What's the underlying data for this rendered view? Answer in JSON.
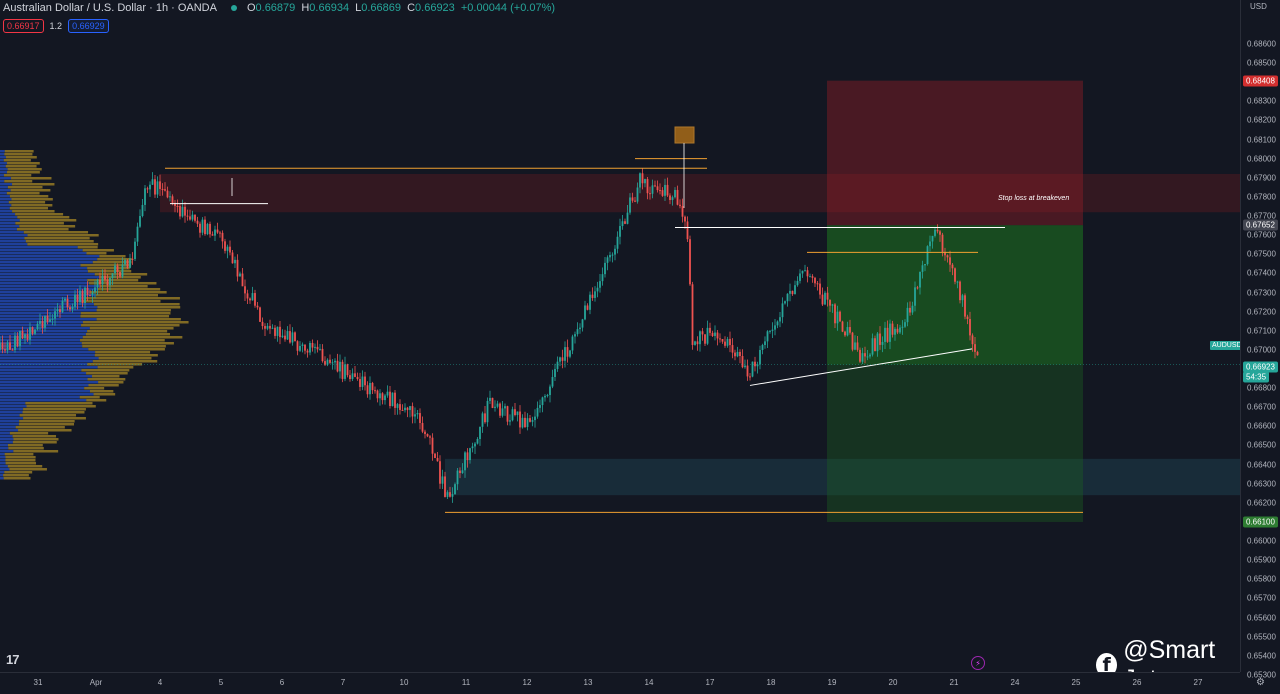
{
  "header": {
    "title": "Australian Dollar / U.S. Dollar · 1h · OANDA",
    "ohlc": {
      "o_label": "O",
      "o": "0.66879",
      "h_label": "H",
      "h": "0.66934",
      "l_label": "L",
      "l": "0.66869",
      "c_label": "C",
      "c": "0.66923",
      "change": "+0.00044 (+0.07%)"
    },
    "sell_price": "0.66917",
    "spread": "1.2",
    "buy_price": "0.66929"
  },
  "price_scale": {
    "currency": "USD",
    "ticks": [
      "0.68600",
      "0.68500",
      "0.68400",
      "0.68300",
      "0.68200",
      "0.68100",
      "0.68000",
      "0.67900",
      "0.67800",
      "0.67700",
      "0.67600",
      "0.67500",
      "0.67400",
      "0.67300",
      "0.67200",
      "0.67100",
      "0.67000",
      "0.66900",
      "0.66800",
      "0.66700",
      "0.66600",
      "0.66500",
      "0.66400",
      "0.66300",
      "0.66200",
      "0.66100",
      "0.66000",
      "0.65900",
      "0.65800",
      "0.65700",
      "0.65600",
      "0.65500",
      "0.65400",
      "0.65300"
    ],
    "stop_tag": "0.68408",
    "entry_tag": "0.67652",
    "target_tag": "0.66100",
    "last_price": "0.66923",
    "countdown": "54:35",
    "symbol": "AUDUSD"
  },
  "time_axis": {
    "labels": [
      "31",
      "Apr",
      "4",
      "5",
      "6",
      "7",
      "10",
      "11",
      "12",
      "13",
      "14",
      "17",
      "18",
      "19",
      "20",
      "21",
      "24",
      "25",
      "26",
      "27"
    ]
  },
  "annotations": {
    "stop_note": "Stop loss at breakeven"
  },
  "watermark": {
    "handle": "@Smart Jet"
  },
  "colors": {
    "up": "#26a69a",
    "down": "#ef5350",
    "background": "#131722",
    "stop_zone": "#8b1d26",
    "profit_zone": "#1b5e20",
    "orange_line": "#f0a030",
    "volume_blue": "#2962ff",
    "volume_gold": "#c9a227"
  },
  "chart_data": {
    "type": "candlestick",
    "symbol": "AUDUSD",
    "timeframe": "1h",
    "ylim": [
      0.6525,
      0.687
    ],
    "anchor_points": [
      {
        "date": "2023-03-31",
        "price": 0.67
      },
      {
        "date": "2023-04-03",
        "price": 0.6745
      },
      {
        "date": "2023-04-04",
        "price": 0.6788
      },
      {
        "date": "2023-04-05",
        "price": 0.6755
      },
      {
        "date": "2023-04-06",
        "price": 0.6715
      },
      {
        "date": "2023-04-07",
        "price": 0.6688
      },
      {
        "date": "2023-04-10",
        "price": 0.6665
      },
      {
        "date": "2023-04-10",
        "price": 0.6622
      },
      {
        "date": "2023-04-11",
        "price": 0.6672
      },
      {
        "date": "2023-04-12",
        "price": 0.666
      },
      {
        "date": "2023-04-13",
        "price": 0.672
      },
      {
        "date": "2023-04-13",
        "price": 0.6788
      },
      {
        "date": "2023-04-14",
        "price": 0.678
      },
      {
        "date": "2023-04-14",
        "price": 0.676
      },
      {
        "date": "2023-04-14",
        "price": 0.6705
      },
      {
        "date": "2023-04-17",
        "price": 0.671
      },
      {
        "date": "2023-04-17",
        "price": 0.6688
      },
      {
        "date": "2023-04-18",
        "price": 0.674
      },
      {
        "date": "2023-04-19",
        "price": 0.673
      },
      {
        "date": "2023-04-19",
        "price": 0.6698
      },
      {
        "date": "2023-04-20",
        "price": 0.6715
      },
      {
        "date": "2023-04-20",
        "price": 0.6765
      },
      {
        "date": "2023-04-21",
        "price": 0.674
      },
      {
        "date": "2023-04-21",
        "price": 0.6692
      }
    ],
    "drawings": {
      "resistance_line": 0.6795,
      "resistance_zone": [
        0.6772,
        0.6792
      ],
      "support_zone": [
        0.6624,
        0.6643
      ],
      "support_line": 0.6615,
      "short_position": {
        "entry": 0.67652,
        "stop": 0.68408,
        "target": 0.661
      }
    }
  }
}
